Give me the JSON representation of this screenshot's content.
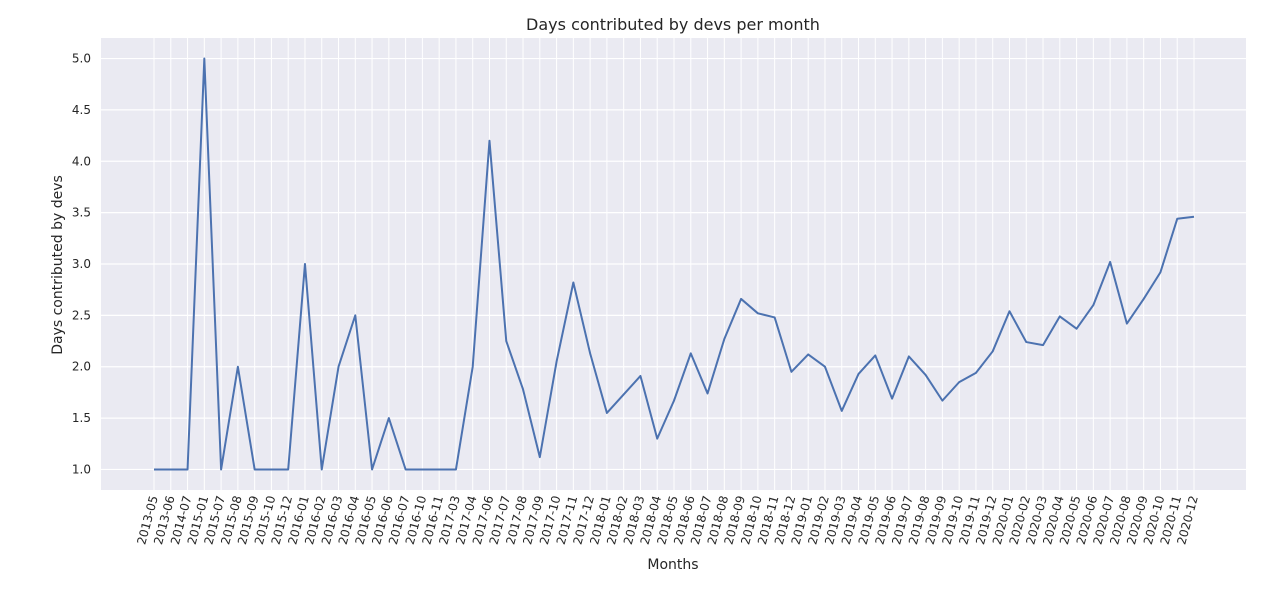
{
  "chart_data": {
    "type": "line",
    "title": "Days contributed by devs per month",
    "xlabel": "Months",
    "ylabel": "Days contributed by devs",
    "ylim": [
      0.8,
      5.2
    ],
    "yticks": [
      "1.0",
      "1.5",
      "2.0",
      "2.5",
      "3.0",
      "3.5",
      "4.0",
      "4.5",
      "5.0"
    ],
    "grid": true,
    "legend": "none",
    "colors": {
      "line": "#4c72b0",
      "plot_bg": "#eaeaf2",
      "grid": "#ffffff",
      "text": "#262626"
    },
    "categories": [
      "2013-05",
      "2013-06",
      "2014-07",
      "2015-01",
      "2015-07",
      "2015-08",
      "2015-09",
      "2015-10",
      "2015-12",
      "2016-01",
      "2016-02",
      "2016-03",
      "2016-04",
      "2016-05",
      "2016-06",
      "2016-07",
      "2016-10",
      "2016-11",
      "2017-03",
      "2017-04",
      "2017-06",
      "2017-07",
      "2017-08",
      "2017-09",
      "2017-10",
      "2017-11",
      "2017-12",
      "2018-01",
      "2018-02",
      "2018-03",
      "2018-04",
      "2018-05",
      "2018-06",
      "2018-07",
      "2018-08",
      "2018-09",
      "2018-10",
      "2018-11",
      "2018-12",
      "2019-01",
      "2019-02",
      "2019-03",
      "2019-04",
      "2019-05",
      "2019-06",
      "2019-07",
      "2019-08",
      "2019-09",
      "2019-10",
      "2019-11",
      "2019-12",
      "2020-01",
      "2020-02",
      "2020-03",
      "2020-04",
      "2020-05",
      "2020-06",
      "2020-07",
      "2020-08",
      "2020-09",
      "2020-10",
      "2020-11",
      "2020-12"
    ],
    "values": [
      1.0,
      1.0,
      1.0,
      5.0,
      1.0,
      2.0,
      1.0,
      1.0,
      1.0,
      3.0,
      1.0,
      2.0,
      2.5,
      1.0,
      1.5,
      1.0,
      1.0,
      1.0,
      1.0,
      2.0,
      4.2,
      2.25,
      1.78,
      1.12,
      2.05,
      2.82,
      2.13,
      1.55,
      1.73,
      1.91,
      1.3,
      1.67,
      2.13,
      1.74,
      2.27,
      2.66,
      2.52,
      2.48,
      1.95,
      2.12,
      2.0,
      1.57,
      1.93,
      2.11,
      1.69,
      2.1,
      1.92,
      1.67,
      1.85,
      1.94,
      2.15,
      2.54,
      2.24,
      2.21,
      2.49,
      2.37,
      2.6,
      3.02,
      2.42,
      2.66,
      2.92,
      3.44,
      3.46
    ]
  }
}
